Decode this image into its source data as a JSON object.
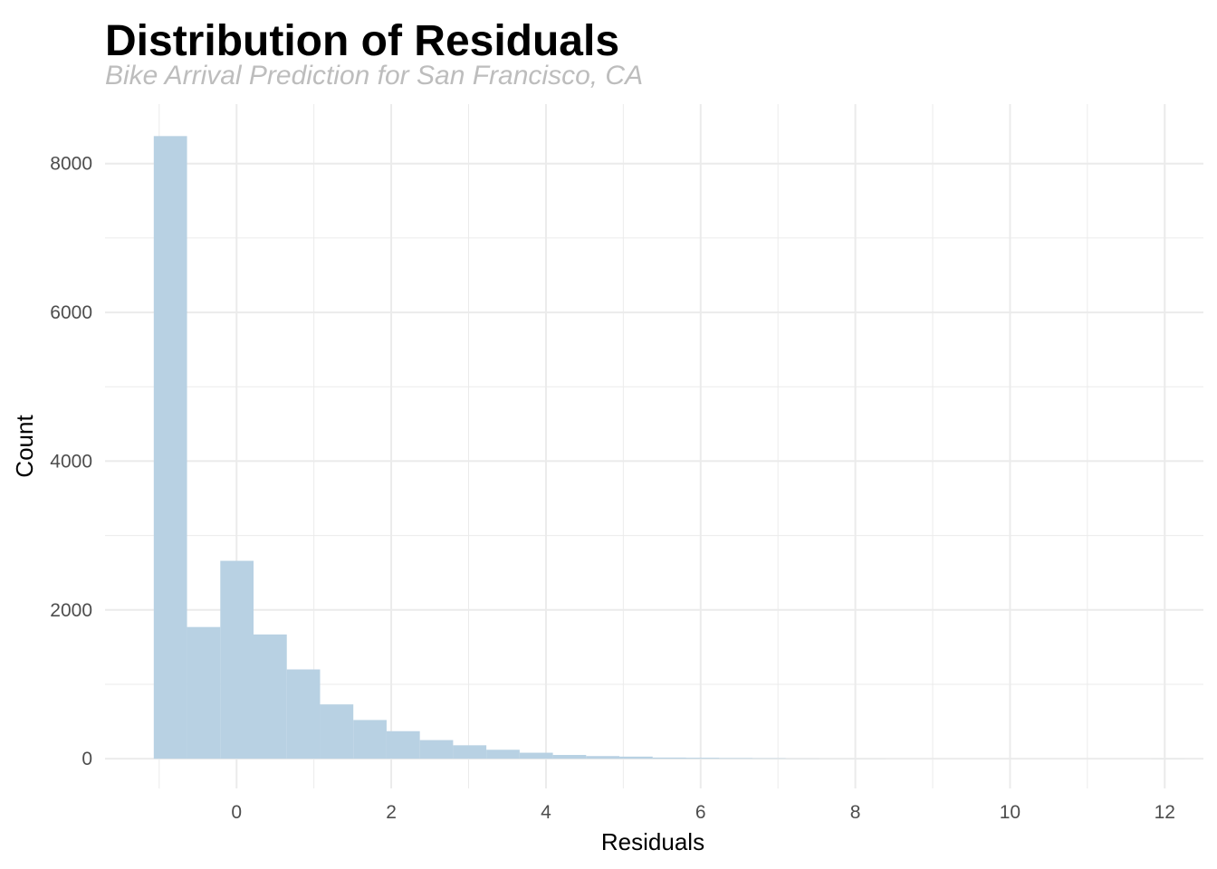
{
  "chart_data": {
    "type": "bar",
    "title": "Distribution of Residuals",
    "subtitle": "Bike Arrival Prediction for San Francisco, CA",
    "xlabel": "Residuals",
    "ylabel": "Count",
    "xlim": [
      -1.7,
      12.5
    ],
    "ylim": [
      -400,
      8800
    ],
    "x_ticks": [
      0,
      2,
      4,
      6,
      8,
      10,
      12
    ],
    "x_tick_labels": [
      "0",
      "2",
      "4",
      "6",
      "8",
      "10",
      "12"
    ],
    "y_ticks": [
      0,
      2000,
      4000,
      6000,
      8000
    ],
    "y_tick_labels": [
      "0",
      "2000",
      "4000",
      "6000",
      "8000"
    ],
    "x_minor_ticks": [
      -1,
      1,
      3,
      5,
      7,
      9,
      11
    ],
    "y_minor_ticks": [
      1000,
      3000,
      5000,
      7000
    ],
    "grid": true,
    "bar_color": "#b8d1e3",
    "grid_color": "#ebebeb",
    "bins": [
      {
        "x0": -1.07,
        "x1": -0.64,
        "count": 8370
      },
      {
        "x0": -0.64,
        "x1": -0.21,
        "count": 1770
      },
      {
        "x0": -0.21,
        "x1": 0.22,
        "count": 2660
      },
      {
        "x0": 0.22,
        "x1": 0.65,
        "count": 1670
      },
      {
        "x0": 0.65,
        "x1": 1.08,
        "count": 1200
      },
      {
        "x0": 1.08,
        "x1": 1.51,
        "count": 730
      },
      {
        "x0": 1.51,
        "x1": 1.94,
        "count": 520
      },
      {
        "x0": 1.94,
        "x1": 2.37,
        "count": 370
      },
      {
        "x0": 2.37,
        "x1": 2.8,
        "count": 250
      },
      {
        "x0": 2.8,
        "x1": 3.23,
        "count": 180
      },
      {
        "x0": 3.23,
        "x1": 3.66,
        "count": 120
      },
      {
        "x0": 3.66,
        "x1": 4.09,
        "count": 80
      },
      {
        "x0": 4.09,
        "x1": 4.52,
        "count": 50
      },
      {
        "x0": 4.52,
        "x1": 4.95,
        "count": 35
      },
      {
        "x0": 4.95,
        "x1": 5.38,
        "count": 28
      },
      {
        "x0": 5.38,
        "x1": 5.81,
        "count": 15
      },
      {
        "x0": 5.81,
        "x1": 6.24,
        "count": 12
      },
      {
        "x0": 6.24,
        "x1": 6.67,
        "count": 8
      },
      {
        "x0": 6.67,
        "x1": 7.1,
        "count": 5
      },
      {
        "x0": 7.1,
        "x1": 7.53,
        "count": 2
      },
      {
        "x0": 7.53,
        "x1": 7.96,
        "count": 1
      },
      {
        "x0": 7.96,
        "x1": 8.39,
        "count": 1
      },
      {
        "x0": 8.39,
        "x1": 8.82,
        "count": 0
      },
      {
        "x0": 8.82,
        "x1": 9.25,
        "count": 0
      },
      {
        "x0": 9.25,
        "x1": 9.68,
        "count": 0
      },
      {
        "x0": 9.68,
        "x1": 10.11,
        "count": 0
      },
      {
        "x0": 10.11,
        "x1": 10.54,
        "count": 0
      },
      {
        "x0": 10.54,
        "x1": 10.97,
        "count": 0
      },
      {
        "x0": 10.97,
        "x1": 11.4,
        "count": 0
      },
      {
        "x0": 11.4,
        "x1": 11.83,
        "count": 0
      },
      {
        "x0": 11.83,
        "x1": 12.26,
        "count": 1
      }
    ]
  }
}
